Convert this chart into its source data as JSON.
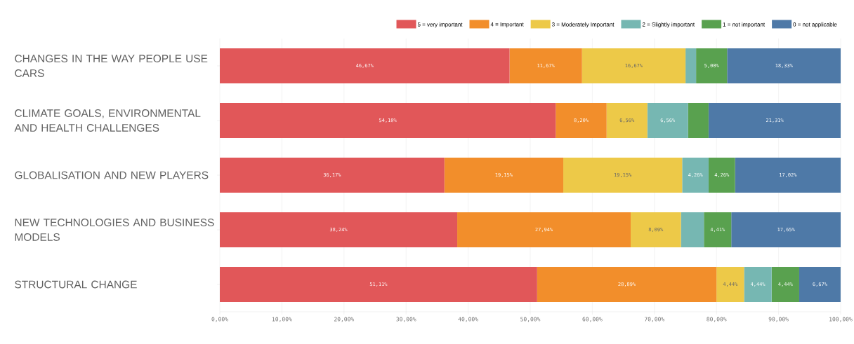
{
  "chart_data": {
    "type": "bar",
    "orientation": "horizontal",
    "stacked": true,
    "categories": [
      "CHANGES IN THE WAY PEOPLE USE CARS",
      "CLIMATE GOALS, ENVIRONMENTAL AND HEALTH CHALLENGES",
      "GLOBALISATION AND NEW PLAYERS",
      "NEW TECHNOLOGIES AND BUSINESS MODELS",
      "STRUCTURAL CHANGE"
    ],
    "series": [
      {
        "name": "5 = very important",
        "color": "#e15759",
        "values": [
          46.67,
          54.1,
          36.17,
          38.24,
          51.11
        ],
        "value_labels": [
          "46,67%",
          "54,10%",
          "36,17%",
          "38,24%",
          "51,11%"
        ]
      },
      {
        "name": "4 = Important",
        "color": "#f28e2b",
        "values": [
          11.67,
          8.2,
          19.15,
          27.94,
          28.89
        ],
        "value_labels": [
          "11,67%",
          "8,20%",
          "19,15%",
          "27,94%",
          "28,89%"
        ]
      },
      {
        "name": "3 = Moderately Important",
        "color": "#edc948",
        "values": [
          16.67,
          6.56,
          19.15,
          8.09,
          4.44
        ],
        "value_labels": [
          "16,67%",
          "6,56%",
          "19,15%",
          "8,09%",
          "4,44%"
        ]
      },
      {
        "name": "2 = Slightly important",
        "color": "#76b7b2",
        "values": [
          1.7,
          6.56,
          4.26,
          3.7,
          4.44
        ],
        "value_labels": [
          null,
          "6,56%",
          "4,26%",
          null,
          "4,44%"
        ]
      },
      {
        "name": "1 = not important",
        "color": "#59a14f",
        "values": [
          5.0,
          3.3,
          4.26,
          4.41,
          4.44
        ],
        "value_labels": [
          "5,00%",
          null,
          "4,26%",
          "4,41%",
          "4,44%"
        ]
      },
      {
        "name": "0 = not applicable",
        "color": "#4e79a7",
        "values": [
          18.33,
          21.31,
          17.02,
          17.65,
          6.67
        ],
        "value_labels": [
          "18,33%",
          "21,31%",
          "17,02%",
          "17,65%",
          "6,67%"
        ]
      }
    ],
    "xlim": [
      0,
      100
    ],
    "xticks": [
      {
        "value": 0,
        "label": "0,00%"
      },
      {
        "value": 10,
        "label": "10,00%"
      },
      {
        "value": 20,
        "label": "20,00%"
      },
      {
        "value": 30,
        "label": "30,00%"
      },
      {
        "value": 40,
        "label": "40,00%"
      },
      {
        "value": 50,
        "label": "50,00%"
      },
      {
        "value": 60,
        "label": "60,00%"
      },
      {
        "value": 70,
        "label": "70,00%"
      },
      {
        "value": 80,
        "label": "80,00%"
      },
      {
        "value": 90,
        "label": "90,00%"
      },
      {
        "value": 100,
        "label": "100,00%"
      }
    ],
    "grid": "x",
    "legend": "top right"
  }
}
